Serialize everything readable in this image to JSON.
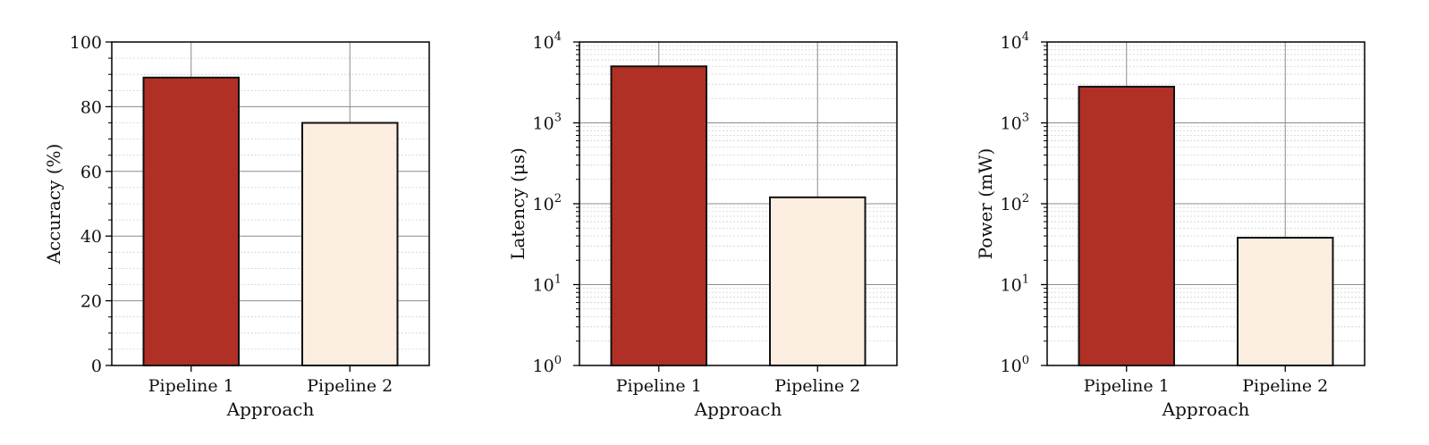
{
  "colors": {
    "pipeline1": "#b03026",
    "pipeline2": "#fbede0",
    "edge": "#111111",
    "grid_major": "#8c8c8c",
    "grid_minor": "#cfcfcf"
  },
  "chart_data": [
    {
      "type": "bar",
      "scale": "linear",
      "categories": [
        "Pipeline 1",
        "Pipeline 2"
      ],
      "values": [
        89,
        75
      ],
      "xlabel": "Approach",
      "ylabel": "Accuracy (%)",
      "ylim": [
        0,
        100
      ],
      "yticks": [
        "0",
        "20",
        "40",
        "60",
        "80",
        "100"
      ],
      "grid": true
    },
    {
      "type": "bar",
      "scale": "log",
      "categories": [
        "Pipeline 1",
        "Pipeline 2"
      ],
      "values": [
        5000,
        120
      ],
      "xlabel": "Approach",
      "ylabel": "Latency (μs)",
      "ylim": [
        1,
        10000
      ],
      "yticks": [
        "10",
        "10",
        "10",
        "10",
        "10"
      ],
      "ytick_exponents": [
        "0",
        "1",
        "2",
        "3",
        "4"
      ],
      "grid": true
    },
    {
      "type": "bar",
      "scale": "log",
      "categories": [
        "Pipeline 1",
        "Pipeline 2"
      ],
      "values": [
        2800,
        38
      ],
      "xlabel": "Approach",
      "ylabel": "Power (mW)",
      "ylim": [
        1,
        10000
      ],
      "yticks": [
        "10",
        "10",
        "10",
        "10",
        "10"
      ],
      "ytick_exponents": [
        "0",
        "1",
        "2",
        "3",
        "4"
      ],
      "grid": true
    }
  ]
}
